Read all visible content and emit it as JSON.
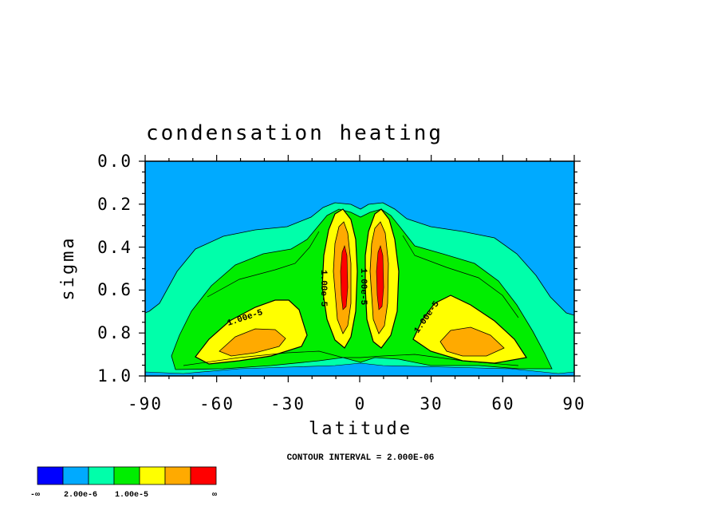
{
  "chart_data": {
    "type": "contour",
    "title": "condensation heating",
    "xlabel": "latitude",
    "ylabel": "sigma",
    "xlim": [
      -90,
      90
    ],
    "ylim": [
      1.0,
      0.0
    ],
    "x_ticks": [
      "-90",
      "-60",
      "-30",
      "0",
      "30",
      "60",
      "90"
    ],
    "y_ticks": [
      "0.0",
      "0.2",
      "0.4",
      "0.6",
      "0.8",
      "1.0"
    ],
    "contour_interval_label": "CONTOUR INTERVAL = 2.000E-06",
    "contour_labels": [
      "1.00e-5",
      "1.00e-5",
      "1.00e-5",
      "1.00e-5"
    ],
    "levels": [
      0,
      2e-06,
      4e-06,
      6e-06,
      8e-06,
      1e-05,
      1.2e-05,
      1.4e-05,
      1.6e-05
    ],
    "colorbar": {
      "colors": [
        "#0000ff",
        "#00aaff",
        "#00ffaa",
        "#00ee00",
        "#ffff00",
        "#ffaa00",
        "#ff0000"
      ],
      "labels": [
        "-∞",
        "2.00e-6",
        "1.00e-5",
        "∞"
      ]
    },
    "colors": {
      "background_region": "#00aaff",
      "low": "#00ffaa",
      "mid": "#00ee00",
      "high": "#ffff00",
      "higher": "#ffaa00",
      "peak": "#ff0000"
    }
  }
}
